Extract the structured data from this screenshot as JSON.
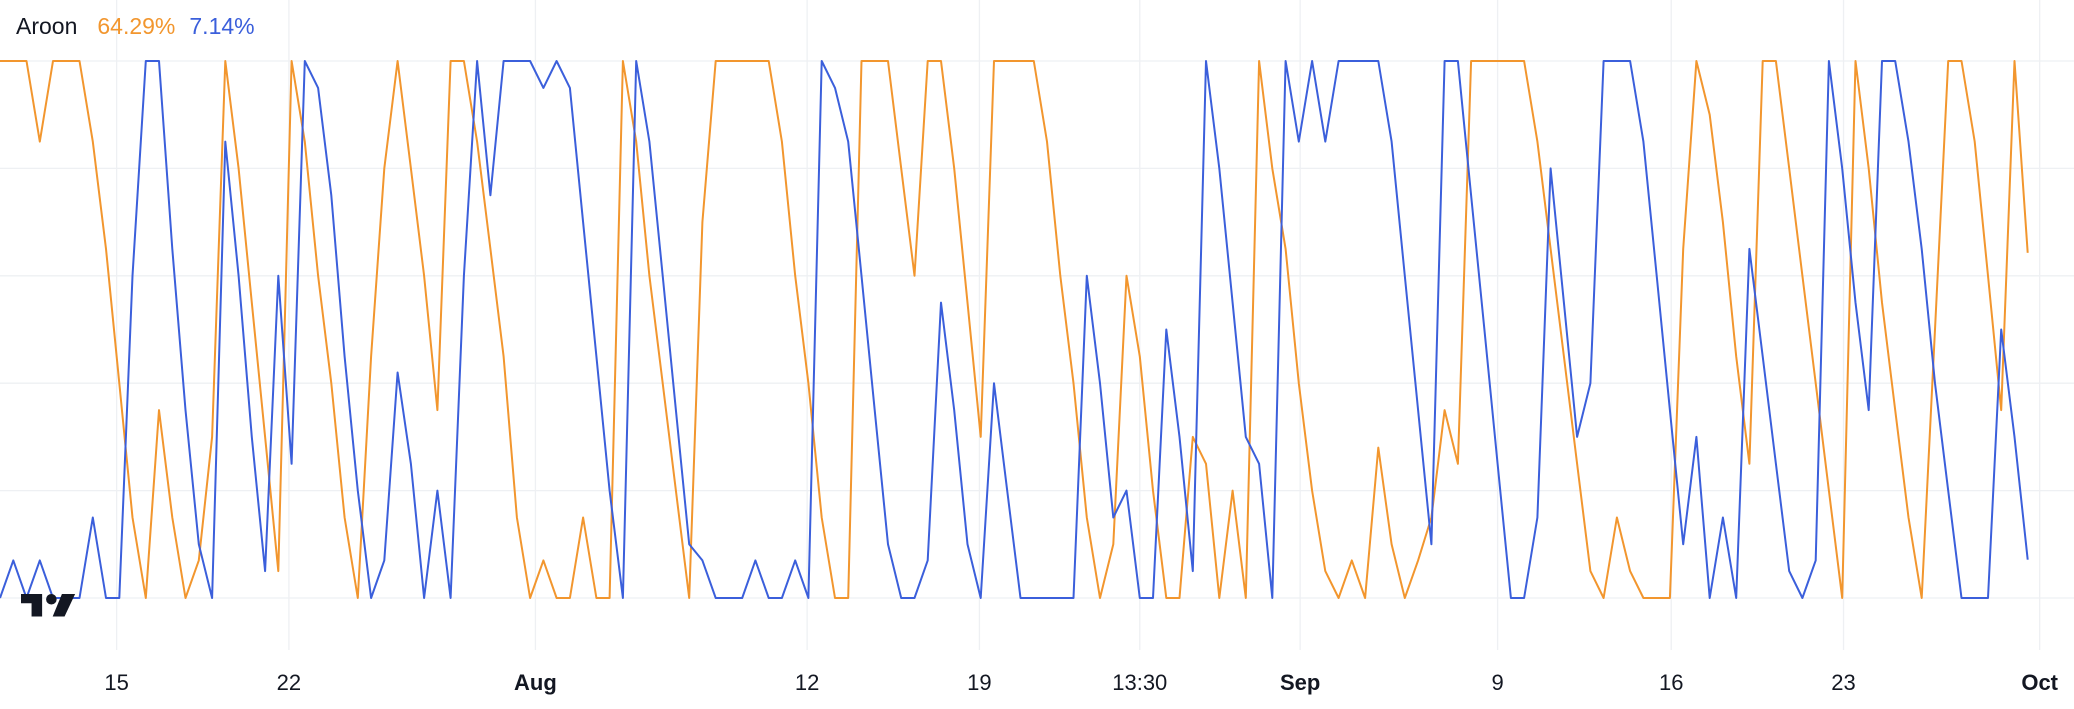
{
  "chart_data": {
    "type": "line",
    "title": "Aroon",
    "ylim": [
      0,
      100
    ],
    "yticks": [
      0,
      20,
      40,
      60,
      80,
      100
    ],
    "grid": true,
    "xlim": [
      0,
      154
    ],
    "xticks": [
      {
        "value": 8.8,
        "label": "15"
      },
      {
        "value": 21.8,
        "label": "22"
      },
      {
        "value": 40.4,
        "label": "Aug"
      },
      {
        "value": 60.9,
        "label": "12"
      },
      {
        "value": 73.9,
        "label": "19"
      },
      {
        "value": 86,
        "label": "13:30"
      },
      {
        "value": 98.1,
        "label": "Sep"
      },
      {
        "value": 113,
        "label": "9"
      },
      {
        "value": 126.1,
        "label": "16"
      },
      {
        "value": 139.1,
        "label": "23"
      },
      {
        "value": 153.9,
        "label": "Oct"
      }
    ],
    "series": [
      {
        "color": "#F2962E",
        "last_label": "64.29%",
        "values": [
          100,
          100,
          100,
          85,
          100,
          100,
          100,
          85,
          65,
          40,
          15,
          0,
          35,
          15,
          0,
          7,
          30,
          100,
          80,
          55,
          30,
          5,
          100,
          85,
          60,
          40,
          15,
          0,
          45,
          80,
          100,
          80,
          60,
          35,
          100,
          100,
          85,
          65,
          45,
          15,
          0,
          7,
          0,
          0,
          15,
          0,
          0,
          100,
          85,
          60,
          40,
          20,
          0,
          70,
          100,
          100,
          100,
          100,
          100,
          85,
          60,
          40,
          15,
          0,
          0,
          100,
          100,
          100,
          80,
          60,
          100,
          100,
          80,
          55,
          30,
          100,
          100,
          100,
          100,
          85,
          60,
          40,
          15,
          0,
          10,
          60,
          45,
          20,
          0,
          0,
          30,
          25,
          0,
          20,
          0,
          100,
          80,
          65,
          40,
          20,
          5,
          0,
          7,
          0,
          28,
          10,
          0,
          7,
          15,
          35,
          25,
          100,
          100,
          100,
          100,
          100,
          85,
          65,
          45,
          25,
          5,
          0,
          15,
          5,
          0,
          0,
          0,
          65,
          100,
          90,
          70,
          45,
          25,
          100,
          100,
          80,
          60,
          40,
          20,
          0,
          100,
          80,
          55,
          35,
          15,
          0,
          50,
          100,
          100,
          85,
          60,
          35,
          100,
          64.29
        ]
      },
      {
        "color": "#3B5FDB",
        "last_label": "7.14%",
        "values": [
          0,
          7,
          0,
          7,
          0,
          0,
          0,
          15,
          0,
          0,
          60,
          100,
          100,
          65,
          35,
          10,
          0,
          85,
          60,
          30,
          5,
          60,
          25,
          100,
          95,
          75,
          45,
          20,
          0,
          7,
          42,
          25,
          0,
          20,
          0,
          60,
          100,
          75,
          100,
          100,
          100,
          95,
          100,
          95,
          70,
          45,
          20,
          0,
          100,
          85,
          60,
          35,
          10,
          7,
          0,
          0,
          0,
          7,
          0,
          0,
          7,
          0,
          100,
          95,
          85,
          60,
          35,
          10,
          0,
          0,
          7,
          55,
          35,
          10,
          0,
          40,
          20,
          0,
          0,
          0,
          0,
          0,
          60,
          40,
          15,
          20,
          0,
          0,
          50,
          30,
          5,
          100,
          80,
          55,
          30,
          25,
          0,
          100,
          85,
          100,
          85,
          100,
          100,
          100,
          100,
          85,
          60,
          35,
          10,
          100,
          100,
          75,
          50,
          25,
          0,
          0,
          15,
          80,
          55,
          30,
          40,
          100,
          100,
          100,
          85,
          60,
          35,
          10,
          30,
          0,
          15,
          0,
          65,
          45,
          25,
          5,
          0,
          7,
          100,
          80,
          55,
          35,
          100,
          100,
          85,
          65,
          40,
          20,
          0,
          0,
          0,
          50,
          30,
          7.14
        ]
      }
    ]
  }
}
